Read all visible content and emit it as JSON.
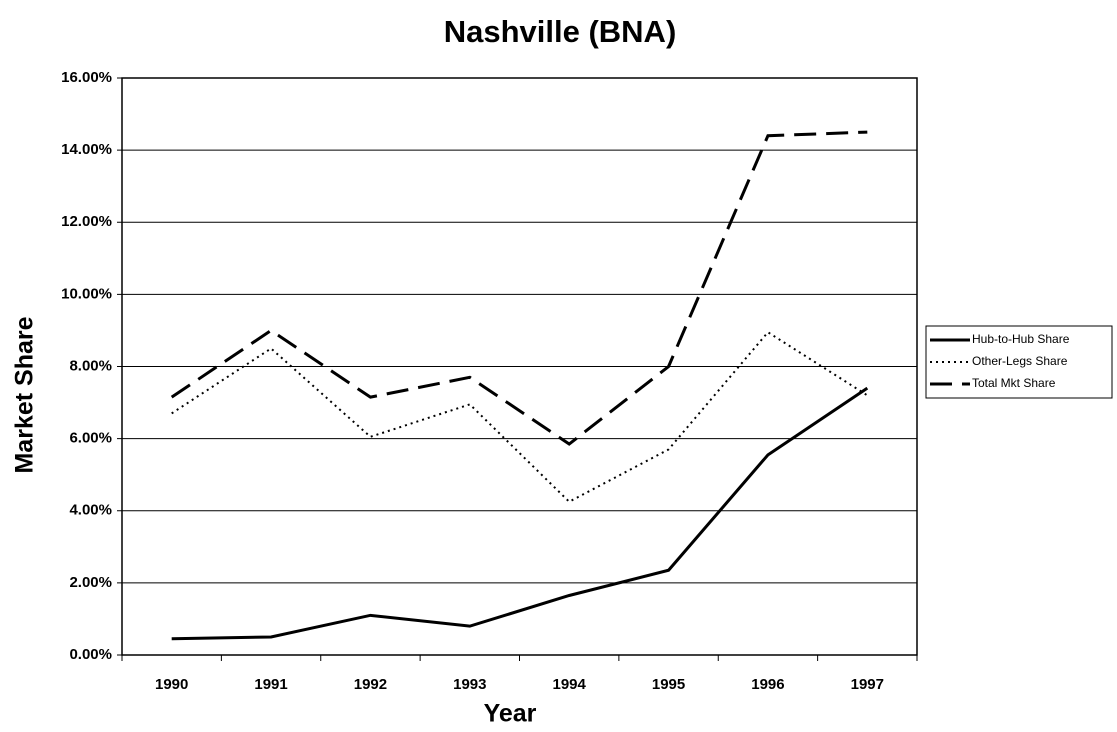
{
  "chart_data": {
    "type": "line",
    "title": "Nashville (BNA)",
    "x_label": "Year",
    "y_label": "Market Share",
    "categories": [
      "1990",
      "1991",
      "1992",
      "1993",
      "1994",
      "1995",
      "1996",
      "1997"
    ],
    "series": [
      {
        "name": "Hub-to-Hub Share",
        "color": "#000000",
        "line_style": "solid",
        "values": [
          0.45,
          0.5,
          1.1,
          0.8,
          1.65,
          2.35,
          5.55,
          7.4
        ]
      },
      {
        "name": "Other-Legs Share",
        "color": "#000000",
        "line_style": "dotted",
        "values": [
          6.7,
          8.5,
          6.05,
          6.95,
          4.25,
          5.7,
          8.95,
          7.2
        ]
      },
      {
        "name": "Total Mkt Share",
        "color": "#000000",
        "line_style": "dashed",
        "values": [
          7.15,
          9.0,
          7.15,
          7.7,
          5.85,
          8.0,
          14.4,
          14.5
        ]
      }
    ],
    "ylim": [
      0,
      16
    ],
    "yticks": [
      {
        "value": 0,
        "label": "0.00%"
      },
      {
        "value": 2,
        "label": "2.00%"
      },
      {
        "value": 4,
        "label": "4.00%"
      },
      {
        "value": 6,
        "label": "6.00%"
      },
      {
        "value": 8,
        "label": "8.00%"
      },
      {
        "value": 10,
        "label": "10.00%"
      },
      {
        "value": 12,
        "label": "12.00%"
      },
      {
        "value": 14,
        "label": "14.00%"
      },
      {
        "value": 16,
        "label": "16.00%"
      }
    ],
    "grid": true,
    "legend": "right"
  }
}
